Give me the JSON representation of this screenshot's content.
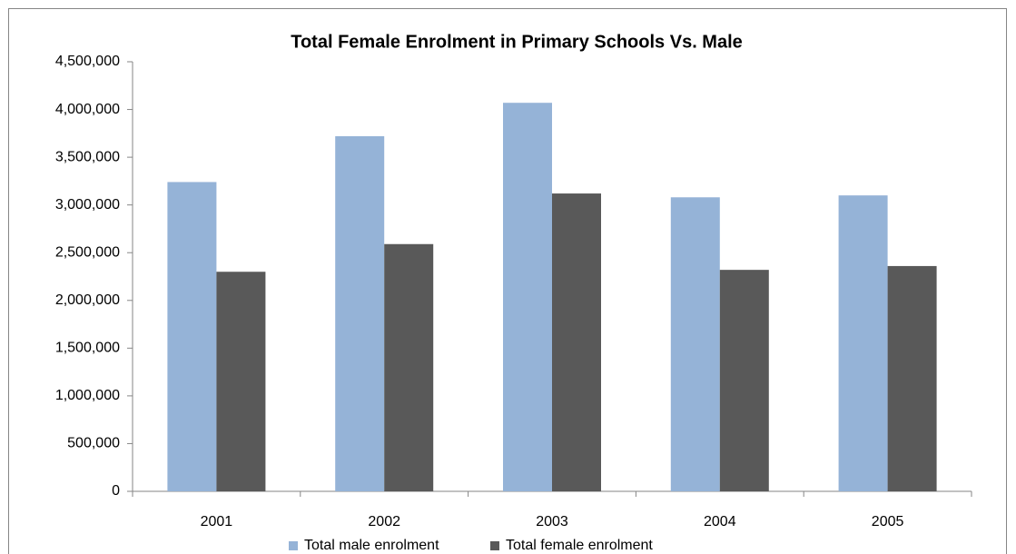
{
  "chart_data": {
    "type": "bar",
    "title": "Total Female Enrolment in Primary Schools Vs. Male",
    "categories": [
      "2001",
      "2002",
      "2003",
      "2004",
      "2005"
    ],
    "series": [
      {
        "name": "Total male enrolment",
        "color": "#95b3d7",
        "values": [
          3240000,
          3720000,
          4070000,
          3080000,
          3100000
        ]
      },
      {
        "name": "Total female enrolment",
        "color": "#595959",
        "values": [
          2300000,
          2590000,
          3120000,
          2320000,
          2360000
        ]
      }
    ],
    "ylim": [
      0,
      4500000
    ],
    "yticks": [
      0,
      {
        "value": 500000,
        "label": "500,000"
      },
      {
        "value": 1000000,
        "label": "1,000,000"
      },
      {
        "value": 1500000,
        "label": "1,500,000"
      },
      {
        "value": 2000000,
        "label": "2,000,000"
      },
      {
        "value": 2500000,
        "label": "2,500,000"
      },
      {
        "value": 3000000,
        "label": "3,000,000"
      },
      {
        "value": 3500000,
        "label": "3,500,000"
      },
      {
        "value": 4000000,
        "label": "4,000,000"
      },
      {
        "value": 4500000,
        "label": "4,500,000"
      }
    ],
    "grid": false,
    "legend": "bottom"
  }
}
